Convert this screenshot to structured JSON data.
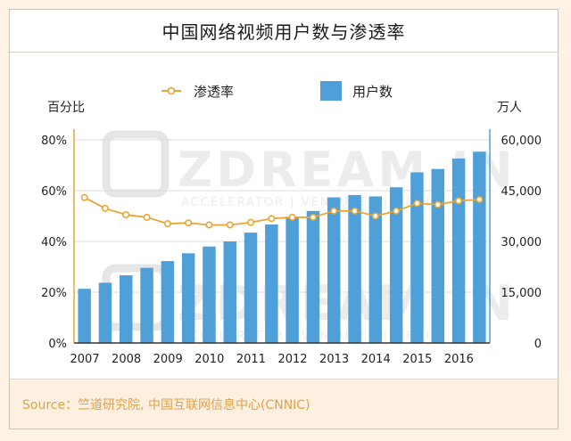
{
  "title": "中国网络视频用户数与渗透率",
  "source": "Source：竺道研究院, 中国互联网信息中心(CNNIC)",
  "watermark": {
    "brand": "ZDREAM.IN",
    "tagline": "ACCELERATOR | VENTURES | MEDIA"
  },
  "colors": {
    "line": "#e9a534",
    "bar": "#4f9fd8",
    "left_axis": "#e9a534",
    "right_axis": "#4f9fd8",
    "source_text": "#e0a24a"
  },
  "chart_data": {
    "type": "bar",
    "left_axis_label": "百分比",
    "right_axis_label": "万人",
    "x_tick_labels": [
      "2007",
      "2008",
      "2009",
      "2010",
      "2011",
      "2012",
      "2013",
      "2014",
      "2015",
      "2016"
    ],
    "left_ticks": [
      "0%",
      "20%",
      "40%",
      "60%",
      "80%"
    ],
    "right_ticks": [
      "0",
      "15,000",
      "30,000",
      "45,000",
      "60,000"
    ],
    "left_ylim": [
      0,
      80
    ],
    "right_ylim": [
      0,
      60000
    ],
    "legend": {
      "position": "top-center"
    },
    "series": [
      {
        "name": "渗透率",
        "kind": "line",
        "axis": "left",
        "values": [
          57.3,
          53,
          50.5,
          49.5,
          47,
          47.3,
          46.5,
          46.5,
          47.5,
          49,
          49.5,
          49.5,
          52,
          52,
          50,
          52,
          55,
          54.5,
          56,
          56.5
        ]
      },
      {
        "name": "用户数",
        "kind": "bar",
        "axis": "right",
        "values": [
          16000,
          17800,
          20000,
          22200,
          24200,
          26500,
          28500,
          30000,
          32600,
          35000,
          37300,
          39000,
          43000,
          43700,
          43300,
          46000,
          50400,
          51400,
          54500,
          56500
        ]
      }
    ]
  }
}
